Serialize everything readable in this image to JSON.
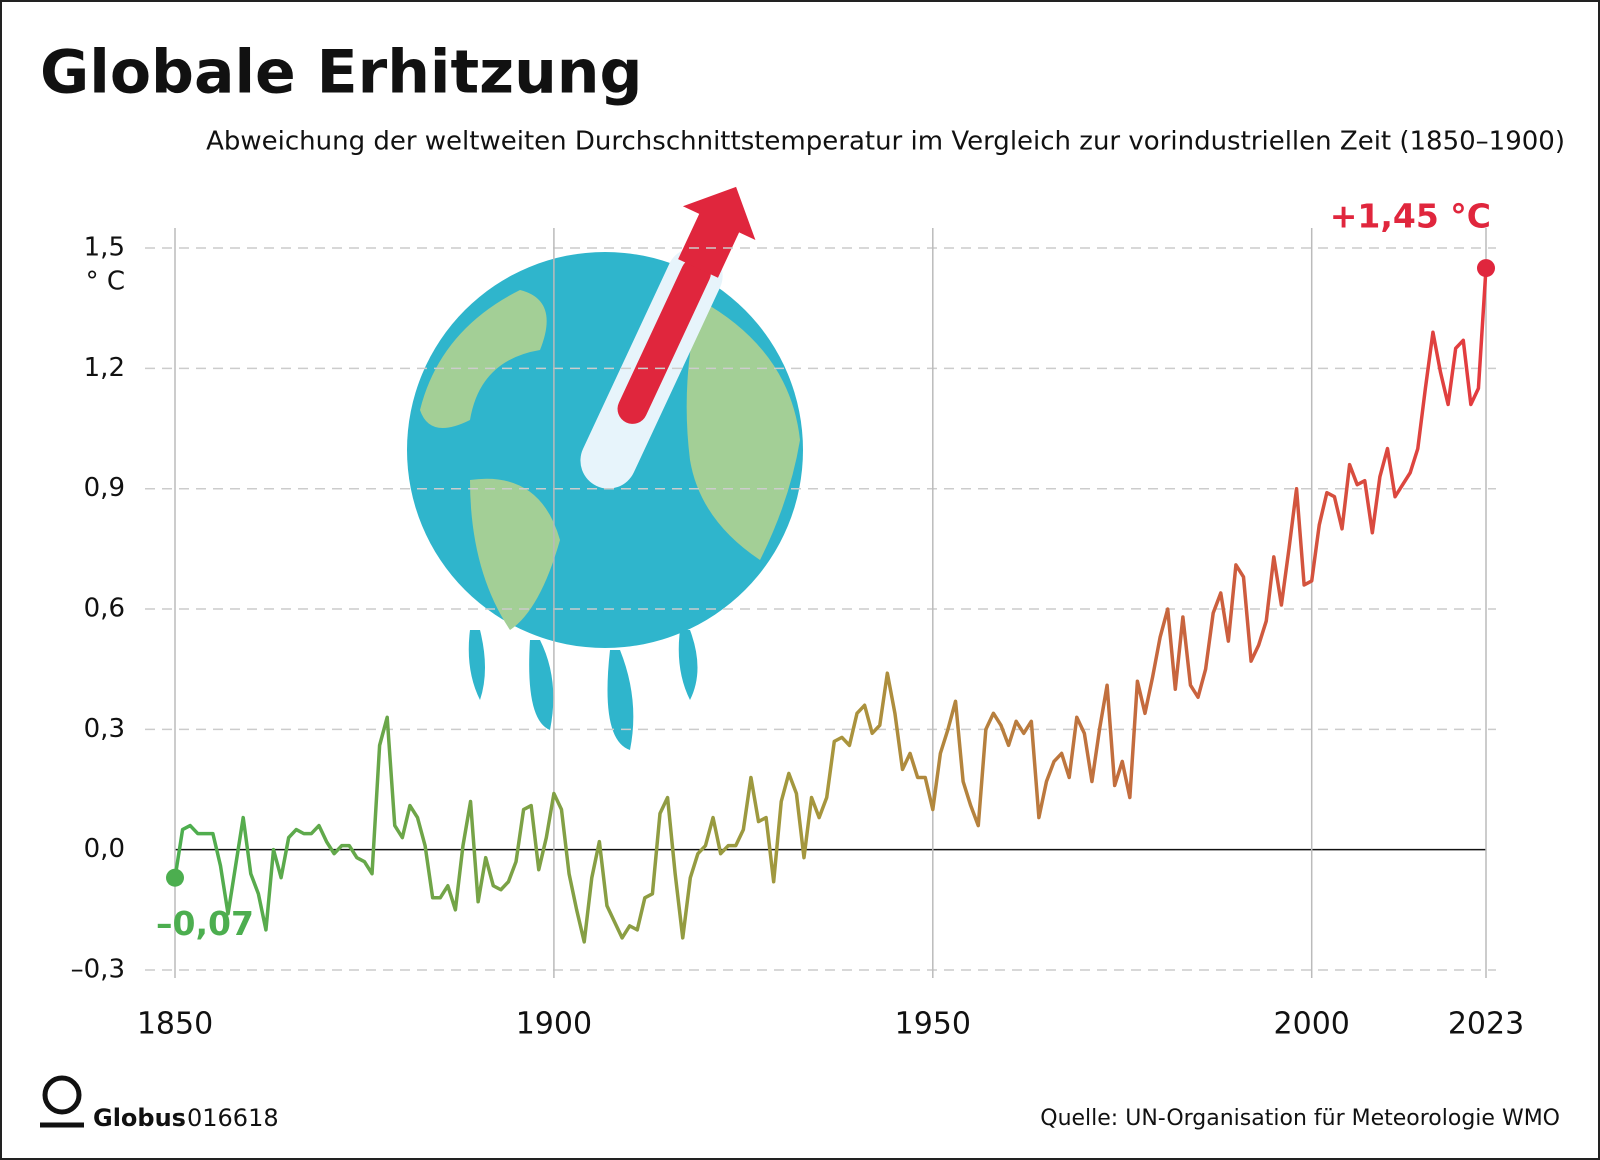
{
  "chart_data": {
    "type": "line",
    "title": "Globale Erhitzung",
    "subtitle": "Abweichung der weltweiten Durchschnittstemperatur im Vergleich zur vorindustriellen Zeit (1850–1900)",
    "y_unit": "° C",
    "x": [
      1850,
      1851,
      1852,
      1853,
      1854,
      1855,
      1856,
      1857,
      1858,
      1859,
      1860,
      1861,
      1862,
      1863,
      1864,
      1865,
      1866,
      1867,
      1868,
      1869,
      1870,
      1871,
      1872,
      1873,
      1874,
      1875,
      1876,
      1877,
      1878,
      1879,
      1880,
      1881,
      1882,
      1883,
      1884,
      1885,
      1886,
      1887,
      1888,
      1889,
      1890,
      1891,
      1892,
      1893,
      1894,
      1895,
      1896,
      1897,
      1898,
      1899,
      1900,
      1901,
      1902,
      1903,
      1904,
      1905,
      1906,
      1907,
      1908,
      1909,
      1910,
      1911,
      1912,
      1913,
      1914,
      1915,
      1916,
      1917,
      1918,
      1919,
      1920,
      1921,
      1922,
      1923,
      1924,
      1925,
      1926,
      1927,
      1928,
      1929,
      1930,
      1931,
      1932,
      1933,
      1934,
      1935,
      1936,
      1937,
      1938,
      1939,
      1940,
      1941,
      1942,
      1943,
      1944,
      1945,
      1946,
      1947,
      1948,
      1949,
      1950,
      1951,
      1952,
      1953,
      1954,
      1955,
      1956,
      1957,
      1958,
      1959,
      1960,
      1961,
      1962,
      1963,
      1964,
      1965,
      1966,
      1967,
      1968,
      1969,
      1970,
      1971,
      1972,
      1973,
      1974,
      1975,
      1976,
      1977,
      1978,
      1979,
      1980,
      1981,
      1982,
      1983,
      1984,
      1985,
      1986,
      1987,
      1988,
      1989,
      1990,
      1991,
      1992,
      1993,
      1994,
      1995,
      1996,
      1997,
      1998,
      1999,
      2000,
      2001,
      2002,
      2003,
      2004,
      2005,
      2006,
      2007,
      2008,
      2009,
      2010,
      2011,
      2012,
      2013,
      2014,
      2015,
      2016,
      2017,
      2018,
      2019,
      2020,
      2021,
      2022,
      2023
    ],
    "values": [
      -0.07,
      0.05,
      0.06,
      0.04,
      0.04,
      0.04,
      -0.04,
      -0.16,
      -0.04,
      0.08,
      -0.06,
      -0.11,
      -0.2,
      0.0,
      -0.07,
      0.03,
      0.05,
      0.04,
      0.04,
      0.06,
      0.02,
      -0.01,
      0.01,
      0.01,
      -0.02,
      -0.03,
      -0.06,
      0.26,
      0.33,
      0.06,
      0.03,
      0.11,
      0.08,
      0.01,
      -0.12,
      -0.12,
      -0.09,
      -0.15,
      0.01,
      0.12,
      -0.13,
      -0.02,
      -0.09,
      -0.1,
      -0.08,
      -0.03,
      0.1,
      0.11,
      -0.05,
      0.03,
      0.14,
      0.1,
      -0.06,
      -0.15,
      -0.23,
      -0.07,
      0.02,
      -0.14,
      -0.18,
      -0.22,
      -0.19,
      -0.2,
      -0.12,
      -0.11,
      0.09,
      0.13,
      -0.06,
      -0.22,
      -0.07,
      -0.01,
      0.01,
      0.08,
      -0.01,
      0.01,
      0.01,
      0.05,
      0.18,
      0.07,
      0.08,
      -0.08,
      0.12,
      0.19,
      0.14,
      -0.02,
      0.13,
      0.08,
      0.13,
      0.27,
      0.28,
      0.26,
      0.34,
      0.36,
      0.29,
      0.31,
      0.44,
      0.34,
      0.2,
      0.24,
      0.18,
      0.18,
      0.1,
      0.24,
      0.3,
      0.37,
      0.17,
      0.11,
      0.06,
      0.3,
      0.34,
      0.31,
      0.26,
      0.32,
      0.29,
      0.32,
      0.08,
      0.17,
      0.22,
      0.24,
      0.18,
      0.33,
      0.29,
      0.17,
      0.3,
      0.41,
      0.16,
      0.22,
      0.13,
      0.42,
      0.34,
      0.43,
      0.53,
      0.6,
      0.4,
      0.58,
      0.41,
      0.38,
      0.45,
      0.59,
      0.64,
      0.52,
      0.71,
      0.68,
      0.47,
      0.51,
      0.57,
      0.73,
      0.61,
      0.75,
      0.9,
      0.66,
      0.67,
      0.81,
      0.89,
      0.88,
      0.8,
      0.96,
      0.91,
      0.92,
      0.79,
      0.93,
      1.0,
      0.88,
      0.91,
      0.94,
      1.0,
      1.15,
      1.29,
      1.19,
      1.11,
      1.25,
      1.27,
      1.11,
      1.15,
      1.45
    ],
    "gradient_colors": [
      "#4cae4f",
      "#a8963d",
      "#e43a3f"
    ],
    "xlim": [
      1850,
      2023
    ],
    "xticks": [
      1850,
      1900,
      1950,
      2000,
      2023
    ],
    "ylim": [
      -0.32,
      1.55
    ],
    "yticks": [
      {
        "value": -0.3,
        "label": "–0,3"
      },
      {
        "value": 0,
        "label": "0,0"
      },
      {
        "value": 0.3,
        "label": "0,3"
      },
      {
        "value": 0.6,
        "label": "0,6"
      },
      {
        "value": 0.9,
        "label": "0,9"
      },
      {
        "value": 1.2,
        "label": "1,2"
      },
      {
        "value": 1.5,
        "label": "1,5"
      }
    ],
    "grid": true,
    "annotations": [
      {
        "label": "–0,07",
        "x": 1850,
        "y": -0.07,
        "color": "#4cae4f"
      },
      {
        "label": "+1,45 °C",
        "x": 2023,
        "y": 1.45,
        "color": "#e0263d"
      }
    ],
    "brand": "Globus",
    "code": "016618",
    "source": "Quelle: UN-Organisation für Meteorologie WMO"
  }
}
